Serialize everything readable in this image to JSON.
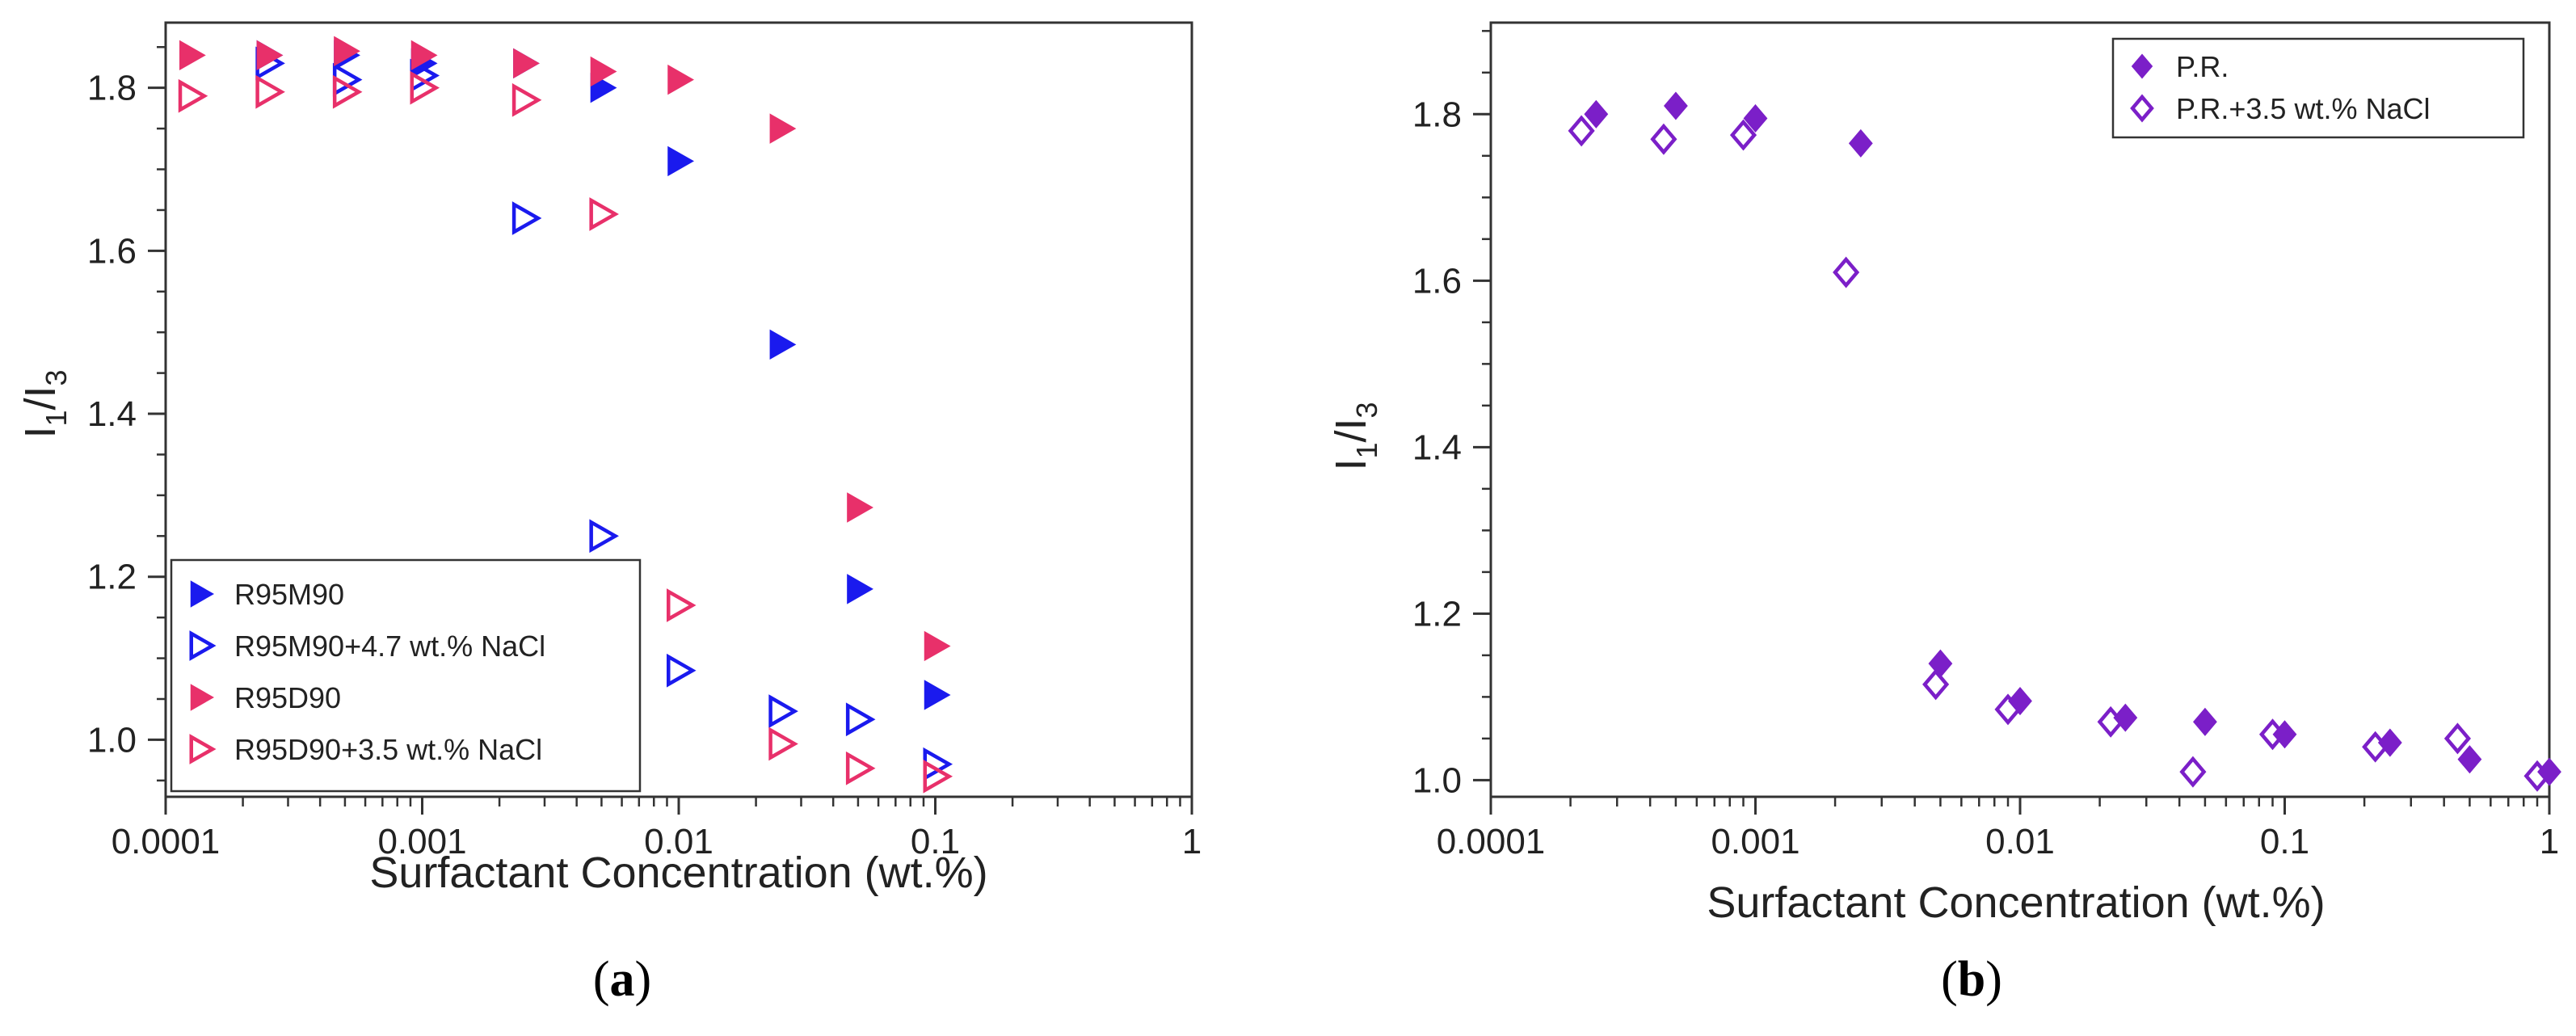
{
  "chart_data": [
    {
      "panel_label": "a",
      "type": "scatter",
      "xscale": "log",
      "xlim": [
        0.0001,
        1
      ],
      "ylim": [
        0.93,
        1.88
      ],
      "xticks": [
        {
          "value": 0.0001,
          "label": "0.0001"
        },
        {
          "value": 0.001,
          "label": "0.001"
        },
        {
          "value": 0.01,
          "label": "0.01"
        },
        {
          "value": 0.1,
          "label": "0.1"
        },
        {
          "value": 1,
          "label": "1"
        }
      ],
      "yticks": [
        {
          "value": 1.0,
          "label": "1.0"
        },
        {
          "value": 1.2,
          "label": "1.2"
        },
        {
          "value": 1.4,
          "label": "1.4"
        },
        {
          "value": 1.6,
          "label": "1.6"
        },
        {
          "value": 1.8,
          "label": "1.8"
        }
      ],
      "xlabel": "Surfactant Concentration (wt.%)",
      "ylabel": {
        "base1": "I",
        "sub1": "1",
        "slash": "/",
        "base2": "I",
        "sub2": "3"
      },
      "legend_position": "bottom-left",
      "series": [
        {
          "name": "R95M90",
          "color": "#1a1aee",
          "marker": "triangle-right",
          "filled": true,
          "x": [
            0.00025,
            0.0005,
            0.001,
            0.0025,
            0.005,
            0.01,
            0.025,
            0.05,
            0.1
          ],
          "y": [
            1.84,
            1.84,
            1.83,
            1.83,
            1.8,
            1.71,
            1.485,
            1.185,
            1.055
          ]
        },
        {
          "name": "R95M90+4.7 wt.% NaCl",
          "color": "#1a1aee",
          "marker": "triangle-right",
          "filled": false,
          "x": [
            0.00025,
            0.0005,
            0.001,
            0.0025,
            0.005,
            0.01,
            0.025,
            0.05,
            0.1
          ],
          "y": [
            1.83,
            1.81,
            1.815,
            1.64,
            1.25,
            1.085,
            1.035,
            1.025,
            0.97
          ]
        },
        {
          "name": "R95D90",
          "color": "#e8306a",
          "marker": "triangle-right",
          "filled": true,
          "x": [
            0.000125,
            0.00025,
            0.0005,
            0.001,
            0.0025,
            0.005,
            0.01,
            0.025,
            0.05,
            0.1
          ],
          "y": [
            1.84,
            1.84,
            1.845,
            1.84,
            1.83,
            1.82,
            1.81,
            1.75,
            1.285,
            1.115
          ]
        },
        {
          "name": "R95D90+3.5 wt.% NaCl",
          "color": "#e8306a",
          "marker": "triangle-right",
          "filled": false,
          "x": [
            0.000125,
            0.00025,
            0.0005,
            0.001,
            0.0025,
            0.005,
            0.01,
            0.025,
            0.05,
            0.1
          ],
          "y": [
            1.79,
            1.795,
            1.795,
            1.8,
            1.785,
            1.645,
            1.165,
            0.995,
            0.965,
            0.955
          ]
        }
      ]
    },
    {
      "panel_label": "b",
      "type": "scatter",
      "xscale": "log",
      "xlim": [
        0.0001,
        1
      ],
      "ylim": [
        0.98,
        1.91
      ],
      "xticks": [
        {
          "value": 0.0001,
          "label": "0.0001"
        },
        {
          "value": 0.001,
          "label": "0.001"
        },
        {
          "value": 0.01,
          "label": "0.01"
        },
        {
          "value": 0.1,
          "label": "0.1"
        },
        {
          "value": 1,
          "label": "1"
        }
      ],
      "yticks": [
        {
          "value": 1.0,
          "label": "1.0"
        },
        {
          "value": 1.2,
          "label": "1.2"
        },
        {
          "value": 1.4,
          "label": "1.4"
        },
        {
          "value": 1.6,
          "label": "1.6"
        },
        {
          "value": 1.8,
          "label": "1.8"
        }
      ],
      "xlabel": "Surfactant Concentration (wt.%)",
      "ylabel": {
        "base1": "I",
        "sub1": "1",
        "slash": "/",
        "base2": "I",
        "sub2": "3"
      },
      "legend_position": "top-right",
      "series": [
        {
          "name": "P.R.",
          "color": "#7b1fc8",
          "marker": "diamond",
          "filled": true,
          "x": [
            0.00025,
            0.0005,
            0.001,
            0.0025,
            0.005,
            0.01,
            0.025,
            0.05,
            0.1,
            0.25,
            0.5,
            1
          ],
          "y": [
            1.8,
            1.81,
            1.795,
            1.765,
            1.14,
            1.095,
            1.075,
            1.07,
            1.055,
            1.045,
            1.025,
            1.01
          ]
        },
        {
          "name": "P.R.+3.5 wt.% NaCl",
          "color": "#7b1fc8",
          "marker": "diamond",
          "filled": false,
          "x": [
            0.00022,
            0.00045,
            0.0009,
            0.0022,
            0.0048,
            0.009,
            0.022,
            0.045,
            0.09,
            0.22,
            0.45,
            0.9
          ],
          "y": [
            1.78,
            1.77,
            1.775,
            1.61,
            1.115,
            1.085,
            1.07,
            1.01,
            1.055,
            1.04,
            1.05,
            1.005
          ]
        }
      ]
    }
  ]
}
